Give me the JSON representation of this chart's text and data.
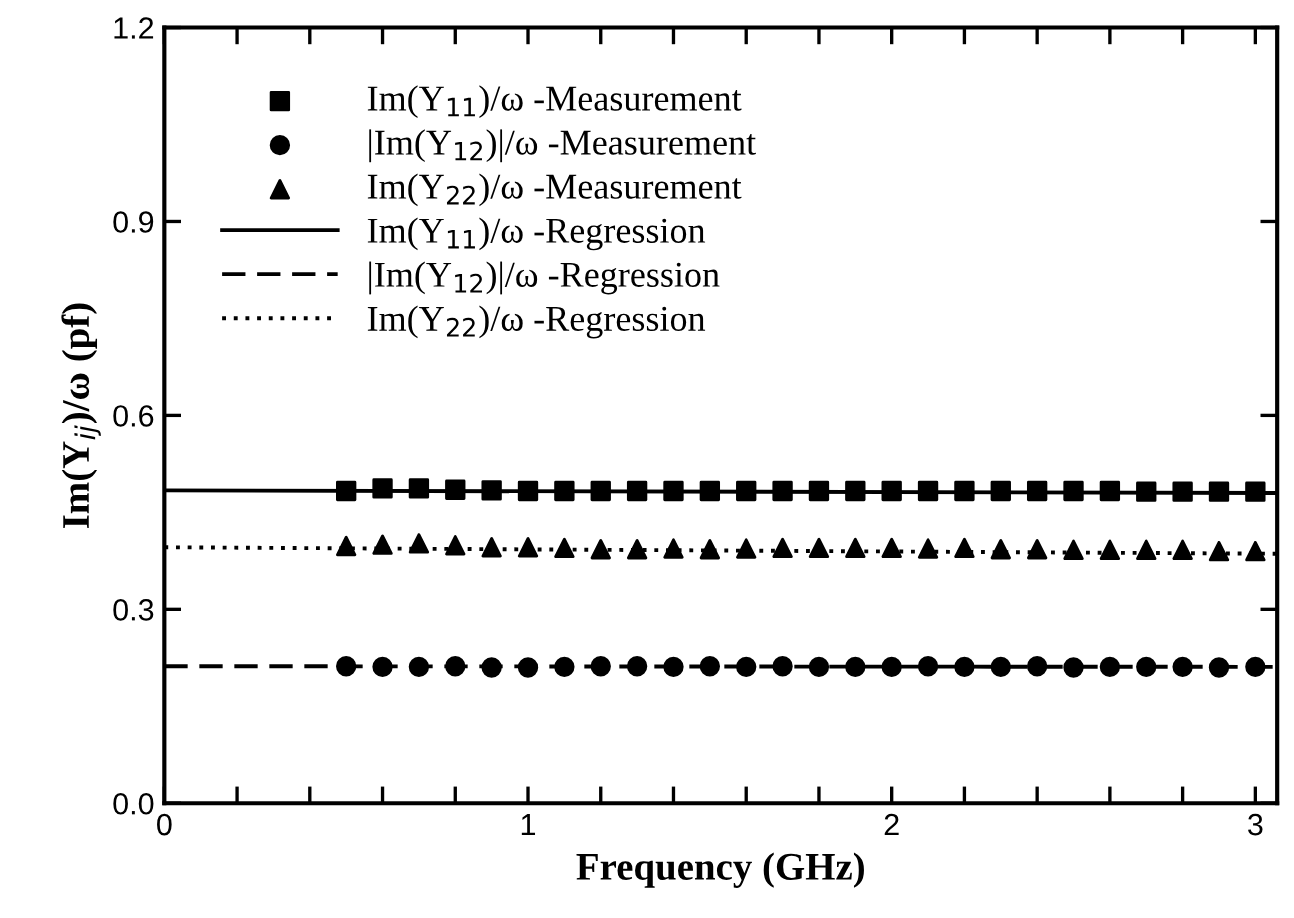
{
  "chart_data": {
    "type": "scatter",
    "xlabel": "Frequency (GHz)",
    "ylabel": "Im(Y$_{ij}$)/ω (pf)",
    "xlim": [
      0,
      3.06
    ],
    "ylim": [
      0,
      1.2
    ],
    "xticks": [
      0,
      {
        "value": 0.2,
        "label": null
      },
      {
        "value": 0.4,
        "label": null
      },
      {
        "value": 0.6,
        "label": null
      },
      {
        "value": 0.8,
        "label": null
      },
      1,
      {
        "value": 1.2,
        "label": null
      },
      {
        "value": 1.4,
        "label": null
      },
      {
        "value": 1.6,
        "label": null
      },
      {
        "value": 1.8,
        "label": null
      },
      2,
      {
        "value": 2.2,
        "label": null
      },
      {
        "value": 2.4,
        "label": null
      },
      {
        "value": 2.6,
        "label": null
      },
      {
        "value": 2.8,
        "label": null
      },
      3
    ],
    "yticks": [
      {
        "value": 0,
        "label": "0.0"
      },
      0.3,
      0.6,
      0.9,
      1.2
    ],
    "legend": "top left",
    "grid": false,
    "series": [
      {
        "name": "Im(Y$_{11}$)/ω -Measurement",
        "marker": "square",
        "color": "#000000",
        "x": [
          0.5,
          0.6,
          0.7,
          0.8,
          0.9,
          1.0,
          1.1,
          1.2,
          1.3,
          1.4,
          1.5,
          1.6,
          1.7,
          1.8,
          1.9,
          2.0,
          2.1,
          2.2,
          2.3,
          2.4,
          2.5,
          2.6,
          2.7,
          2.8,
          2.9,
          3.0
        ],
        "values": [
          0.483,
          0.487,
          0.487,
          0.485,
          0.484,
          0.483,
          0.483,
          0.483,
          0.483,
          0.483,
          0.483,
          0.483,
          0.483,
          0.483,
          0.483,
          0.483,
          0.483,
          0.483,
          0.483,
          0.483,
          0.483,
          0.483,
          0.482,
          0.482,
          0.482,
          0.482
        ]
      },
      {
        "name": "|Im(Y$_{12}$)|/ω -Measurement",
        "marker": "circle",
        "color": "#000000",
        "x": [
          0.5,
          0.6,
          0.7,
          0.8,
          0.9,
          1.0,
          1.1,
          1.2,
          1.3,
          1.4,
          1.5,
          1.6,
          1.7,
          1.8,
          1.9,
          2.0,
          2.1,
          2.2,
          2.3,
          2.4,
          2.5,
          2.6,
          2.7,
          2.8,
          2.9,
          3.0
        ],
        "values": [
          0.212,
          0.211,
          0.211,
          0.212,
          0.21,
          0.21,
          0.211,
          0.212,
          0.212,
          0.211,
          0.212,
          0.211,
          0.212,
          0.211,
          0.211,
          0.211,
          0.212,
          0.211,
          0.211,
          0.212,
          0.21,
          0.211,
          0.211,
          0.211,
          0.21,
          0.211
        ]
      },
      {
        "name": "Im(Y$_{22}$)/ω -Measurement",
        "marker": "triangle",
        "color": "#000000",
        "x": [
          0.5,
          0.6,
          0.7,
          0.8,
          0.9,
          1.0,
          1.1,
          1.2,
          1.3,
          1.4,
          1.5,
          1.6,
          1.7,
          1.8,
          1.9,
          2.0,
          2.1,
          2.2,
          2.3,
          2.4,
          2.5,
          2.6,
          2.7,
          2.8,
          2.9,
          3.0
        ],
        "values": [
          0.398,
          0.4,
          0.402,
          0.399,
          0.396,
          0.396,
          0.395,
          0.393,
          0.393,
          0.394,
          0.393,
          0.394,
          0.395,
          0.395,
          0.395,
          0.395,
          0.394,
          0.395,
          0.393,
          0.393,
          0.392,
          0.392,
          0.392,
          0.392,
          0.39,
          0.39
        ]
      },
      {
        "name": "Im(Y$_{11}$)/ω -Regression",
        "type": "line",
        "line_style": "solid",
        "color": "#000000",
        "x": [
          0,
          3.06
        ],
        "values": [
          0.484,
          0.48
        ]
      },
      {
        "name": "|Im(Y$_{12}$)|/ω -Regression",
        "type": "line",
        "line_style": "dashed",
        "color": "#000000",
        "x": [
          0,
          3.06
        ],
        "values": [
          0.212,
          0.211
        ]
      },
      {
        "name": "Im(Y$_{22}$)/ω -Regression",
        "type": "line",
        "line_style": "dotted",
        "color": "#000000",
        "x": [
          0,
          3.06
        ],
        "values": [
          0.396,
          0.386
        ]
      }
    ]
  }
}
